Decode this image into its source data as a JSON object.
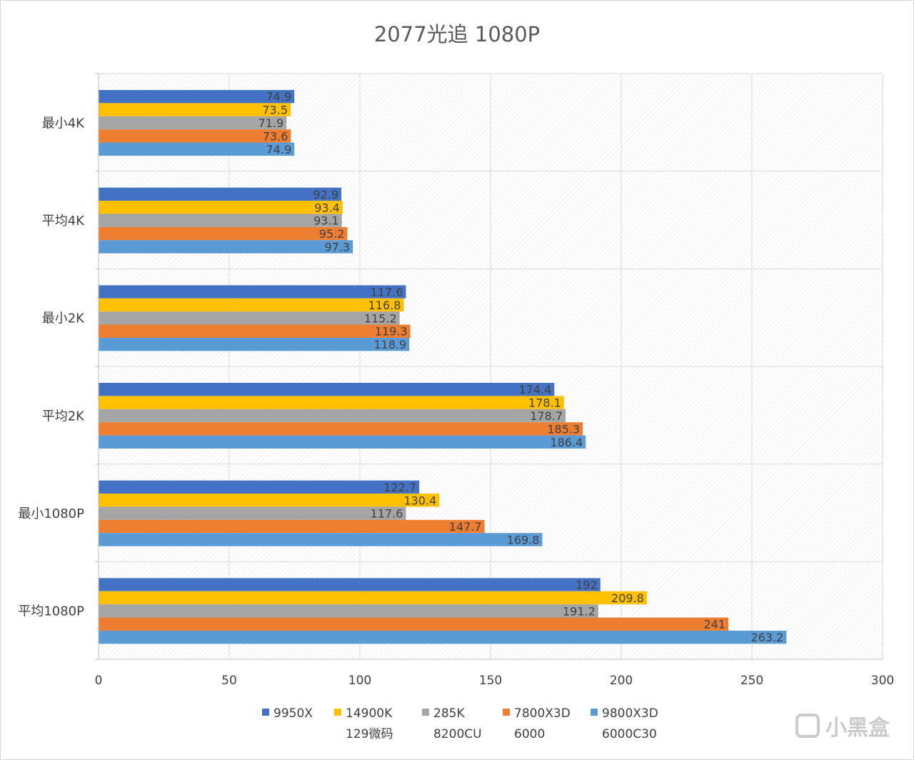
{
  "chart_data": {
    "type": "bar",
    "orientation": "horizontal",
    "title": "2077光追 1080P",
    "categories": [
      "最小4K",
      "平均4K",
      "最小2K",
      "平均2K",
      "最小1080P",
      "平均1080P"
    ],
    "series": [
      {
        "name": "9950X",
        "color": "#4472c4",
        "values": [
          74.9,
          92.9,
          117.6,
          174.4,
          122.7,
          192
        ]
      },
      {
        "name": "14900K\n129微码",
        "color": "#ffc000",
        "values": [
          73.5,
          93.4,
          116.8,
          178.1,
          130.4,
          209.8
        ]
      },
      {
        "name": "285K\n8200CU",
        "color": "#a5a5a5",
        "values": [
          71.9,
          93.1,
          115.2,
          178.7,
          117.6,
          191.2
        ]
      },
      {
        "name": "7800X3D\n6000",
        "color": "#ed7d31",
        "values": [
          73.6,
          95.2,
          119.3,
          185.3,
          147.7,
          241
        ]
      },
      {
        "name": "9800X3D\n6000C30",
        "color": "#5b9bd5",
        "values": [
          74.9,
          97.3,
          118.9,
          186.4,
          169.8,
          263.2
        ]
      }
    ],
    "xlim": [
      0,
      300
    ],
    "xticks": [
      0,
      50,
      100,
      150,
      200,
      250,
      300
    ],
    "grid": true,
    "legend_placement": "bottom",
    "data_labels": true
  },
  "watermark": {
    "text": "小黑盒"
  }
}
